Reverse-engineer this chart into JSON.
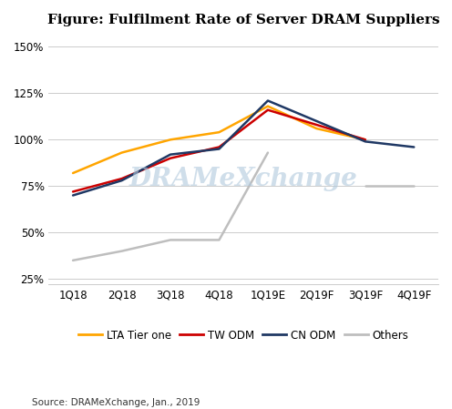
{
  "title": "Figure: Fulfilment Rate of Server DRAM Suppliers",
  "source": "Source: DRAMeXchange, Jan., 2019",
  "watermark": "DRAMeXchange",
  "x_labels": [
    "1Q18",
    "2Q18",
    "3Q18",
    "4Q18",
    "1Q19E",
    "2Q19F",
    "3Q19F",
    "4Q19F"
  ],
  "series": {
    "LTA Tier one": {
      "values": [
        0.82,
        0.93,
        1.0,
        1.04,
        1.18,
        1.06,
        1.0,
        null
      ],
      "color": "#FFA500",
      "linewidth": 1.8
    },
    "TW ODM": {
      "values": [
        0.72,
        0.79,
        0.9,
        0.96,
        1.16,
        1.08,
        1.0,
        null
      ],
      "color": "#CC0000",
      "linewidth": 1.8
    },
    "CN ODM": {
      "values": [
        0.7,
        0.78,
        0.92,
        0.95,
        1.21,
        1.1,
        0.99,
        0.96
      ],
      "color": "#1F3864",
      "linewidth": 1.8
    },
    "Others": {
      "values": [
        0.35,
        0.4,
        0.46,
        0.46,
        0.93,
        null,
        0.75,
        0.75
      ],
      "color": "#BEBEBE",
      "linewidth": 1.8
    }
  },
  "ylim_min": 0.22,
  "ylim_max": 1.57,
  "yticks": [
    0.25,
    0.5,
    0.75,
    1.0,
    1.25,
    1.5
  ],
  "background_color": "#FFFFFF",
  "grid_color": "#CCCCCC",
  "title_fontsize": 11,
  "tick_fontsize": 8.5,
  "legend_fontsize": 8.5,
  "source_fontsize": 7.5
}
